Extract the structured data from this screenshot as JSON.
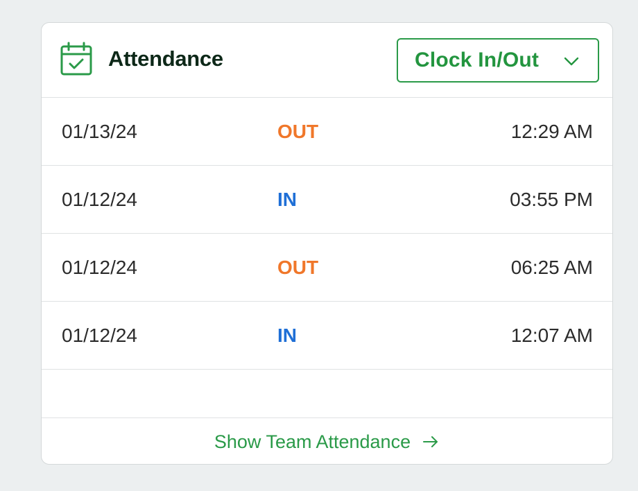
{
  "header": {
    "title": "Attendance",
    "icon": "calendar-check-icon",
    "clock_button_label": "Clock In/Out"
  },
  "colors": {
    "brand_green": "#2a9a48",
    "out": "#f0772a",
    "in": "#1f6fd6"
  },
  "entries": [
    {
      "date": "01/13/24",
      "direction": "OUT",
      "time": "12:29 AM"
    },
    {
      "date": "01/12/24",
      "direction": "IN",
      "time": "03:55 PM"
    },
    {
      "date": "01/12/24",
      "direction": "OUT",
      "time": "06:25 AM"
    },
    {
      "date": "01/12/24",
      "direction": "IN",
      "time": "12:07 AM"
    }
  ],
  "footer": {
    "link_label": "Show Team Attendance"
  }
}
